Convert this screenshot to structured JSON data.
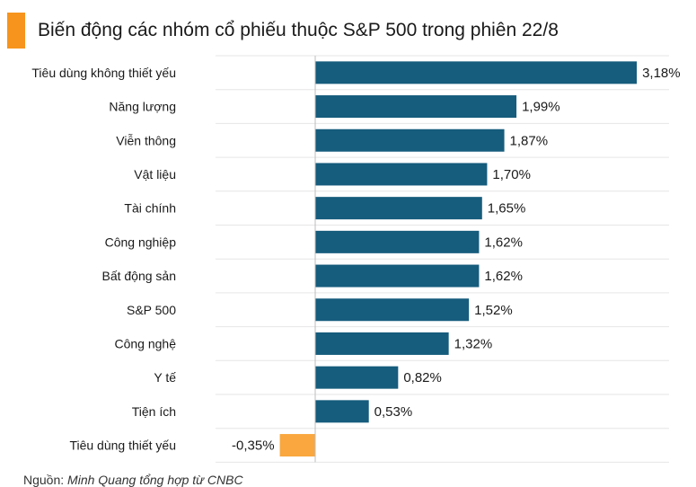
{
  "title": "Biến động các nhóm cổ phiếu thuộc S&P 500 trong phiên 22/8",
  "source_prefix": "Nguồn: ",
  "source_text": "Minh Quang tổng hợp từ CNBC",
  "colors": {
    "positive": "#165c7d",
    "negative": "#f9a73e",
    "accent": "#f7941d",
    "grid": "#e6e6e6"
  },
  "chart_data": {
    "type": "bar",
    "orientation": "horizontal",
    "categories": [
      "Tiêu dùng không thiết yếu",
      "Năng lượng",
      "Viễn thông",
      "Vật liệu",
      "Tài chính",
      "Công nghiệp",
      "Bất động sản",
      "S&P 500",
      "Công nghệ",
      "Y tế",
      "Tiện ích",
      "Tiêu dùng thiết yếu"
    ],
    "values": [
      3.18,
      1.99,
      1.87,
      1.7,
      1.65,
      1.62,
      1.62,
      1.52,
      1.32,
      0.82,
      0.53,
      -0.35
    ],
    "value_labels": [
      "3,18%",
      "1,99%",
      "1,87%",
      "1,70%",
      "1,65%",
      "1,62%",
      "1,62%",
      "1,52%",
      "1,32%",
      "0,82%",
      "0,53%",
      "-0,35%"
    ],
    "unit": "%",
    "xlim": [
      -0.35,
      3.18
    ],
    "grid": true,
    "legend": "none"
  }
}
